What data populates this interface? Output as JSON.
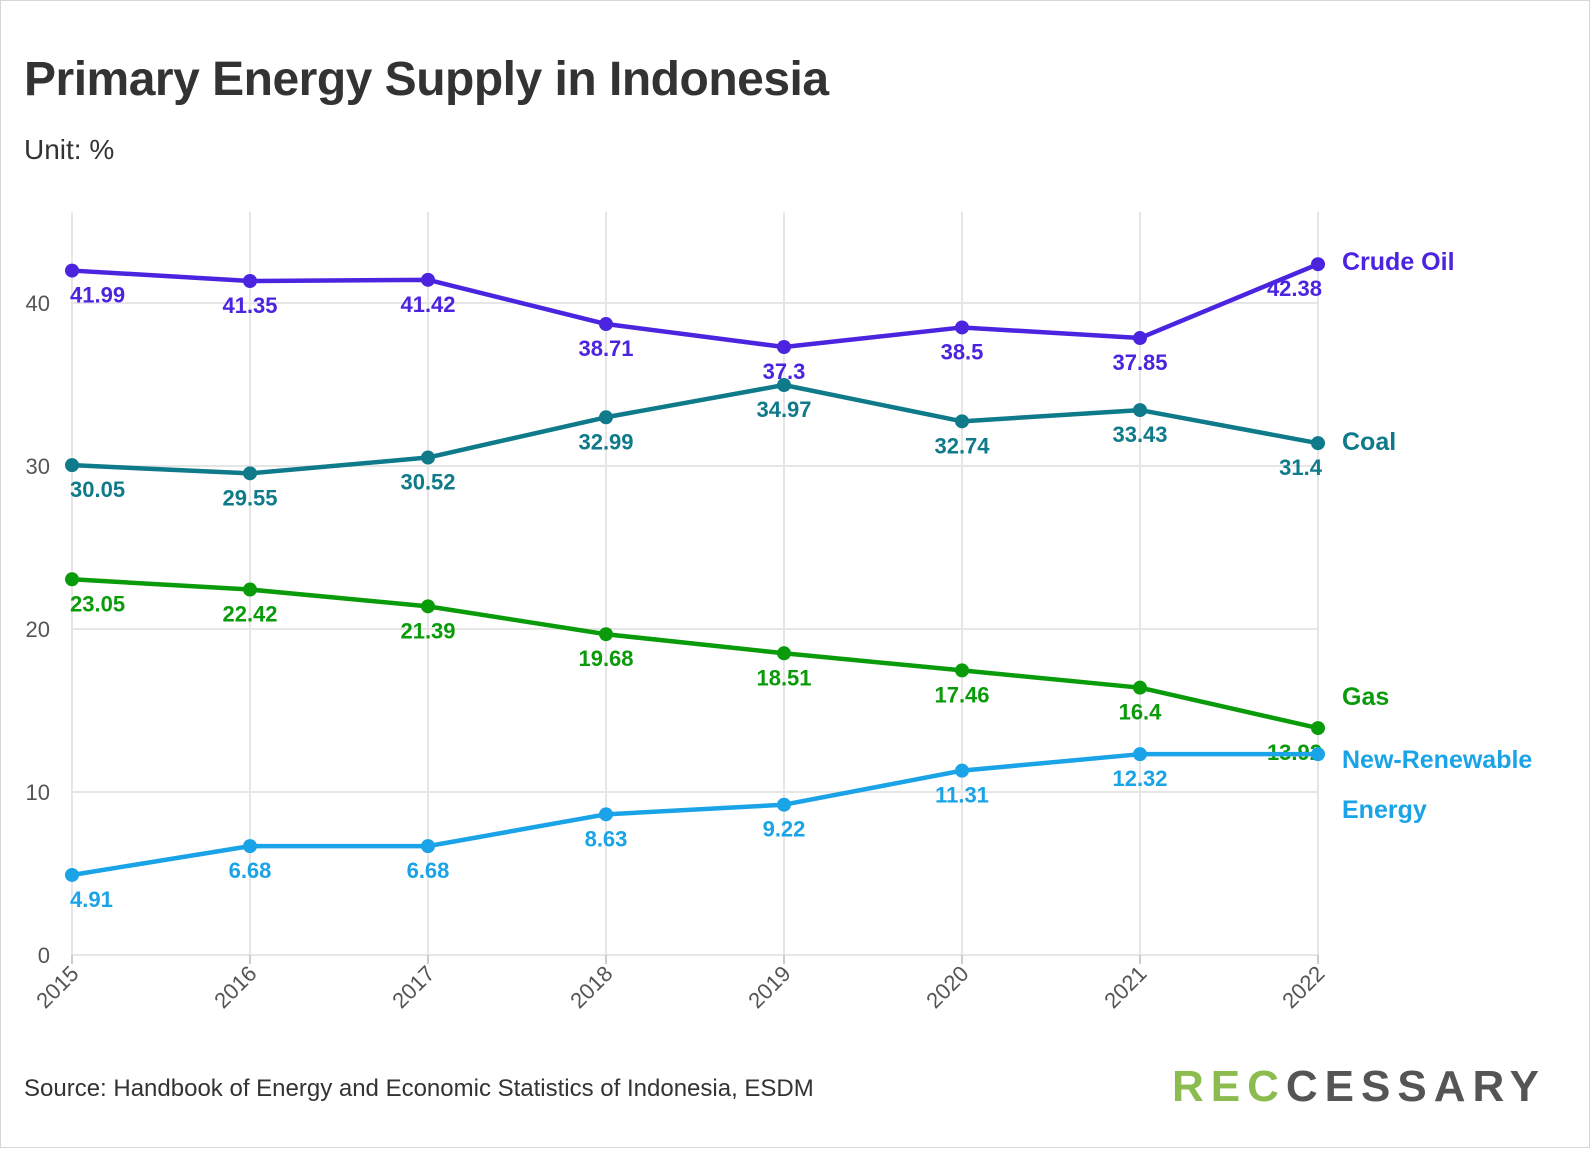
{
  "title": "Primary Energy Supply in Indonesia",
  "subtitle": "Unit: %",
  "source": "Source: Handbook of Energy and Economic Statistics of Indonesia, ESDM",
  "logo": {
    "part1": "REC",
    "part2": "CESSARY"
  },
  "colors": {
    "crude_oil": "#4b24e0",
    "coal": "#0f7a8a",
    "gas": "#0a9b0a",
    "renewable": "#1aa3e6",
    "grid": "#e6e6e6",
    "axis_text": "#555555"
  },
  "chart_data": {
    "type": "line",
    "title": "Primary Energy Supply in Indonesia",
    "subtitle": "Unit: %",
    "xlabel": "",
    "ylabel": "",
    "x": [
      "2015",
      "2016",
      "2017",
      "2018",
      "2019",
      "2020",
      "2021",
      "2022"
    ],
    "ylim": [
      0,
      45
    ],
    "yticks": [
      0,
      10,
      20,
      30,
      40
    ],
    "grid": true,
    "legend": "direct labels at right end of lines",
    "series": [
      {
        "name": "Crude Oil",
        "label_lines": [
          "Crude Oil"
        ],
        "color": "#4b24e0",
        "values": [
          41.99,
          41.35,
          41.42,
          38.71,
          37.3,
          38.5,
          37.85,
          42.38
        ],
        "labels": [
          "41.99",
          "41.35",
          "41.42",
          "38.71",
          "37.3",
          "38.5",
          "37.85",
          "42.38"
        ]
      },
      {
        "name": "Coal",
        "label_lines": [
          "Coal"
        ],
        "color": "#0f7a8a",
        "values": [
          30.05,
          29.55,
          30.52,
          32.99,
          34.97,
          32.74,
          33.43,
          31.4
        ],
        "labels": [
          "30.05",
          "29.55",
          "30.52",
          "32.99",
          "34.97",
          "32.74",
          "33.43",
          "31.4"
        ]
      },
      {
        "name": "Gas",
        "label_lines": [
          "Gas"
        ],
        "color": "#0a9b0a",
        "values": [
          23.05,
          22.42,
          21.39,
          19.68,
          18.51,
          17.46,
          16.4,
          13.92
        ],
        "labels": [
          "23.05",
          "22.42",
          "21.39",
          "19.68",
          "18.51",
          "17.46",
          "16.4",
          "13.92"
        ]
      },
      {
        "name": "New-Renewable Energy",
        "label_lines": [
          "New-Renewable",
          "Energy"
        ],
        "color": "#1aa3e6",
        "values": [
          4.91,
          6.68,
          6.68,
          8.63,
          9.22,
          11.31,
          12.32,
          12.32
        ],
        "labels": [
          "4.91",
          "6.68",
          "6.68",
          "8.63",
          "9.22",
          "11.31",
          "12.32",
          ""
        ]
      }
    ]
  }
}
